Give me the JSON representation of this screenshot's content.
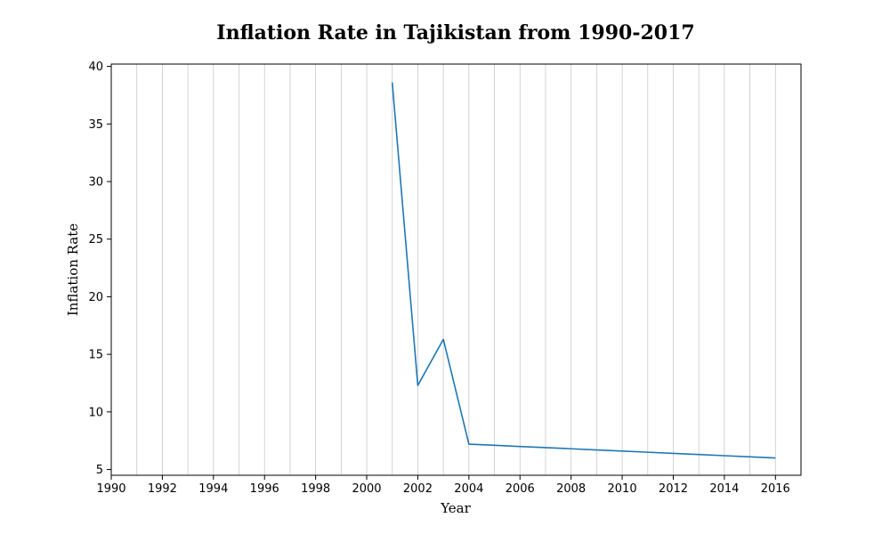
{
  "chart_data": {
    "type": "line",
    "title": "Inflation Rate in Tajikistan from 1990-2017",
    "xlabel": "Year",
    "ylabel": "Inflation Rate",
    "xlim": [
      1990,
      2017
    ],
    "ylim": [
      4.5,
      40.2
    ],
    "xticks": [
      1990,
      1992,
      1994,
      1996,
      1998,
      2000,
      2002,
      2004,
      2006,
      2008,
      2010,
      2012,
      2014,
      2016
    ],
    "yticks": [
      5,
      10,
      15,
      20,
      25,
      30,
      35,
      40
    ],
    "grid": "vertical lines at every year",
    "x": [
      2001,
      2002,
      2003,
      2004,
      2005,
      2006,
      2007,
      2008,
      2009,
      2010,
      2011,
      2012,
      2013,
      2014,
      2015,
      2016
    ],
    "series": [
      {
        "color": "#1f77b4",
        "values": [
          38.6,
          12.3,
          16.3,
          7.2,
          7.1,
          7.0,
          6.9,
          6.8,
          6.7,
          6.6,
          6.5,
          6.4,
          6.3,
          6.2,
          6.1,
          6.0
        ]
      }
    ]
  }
}
